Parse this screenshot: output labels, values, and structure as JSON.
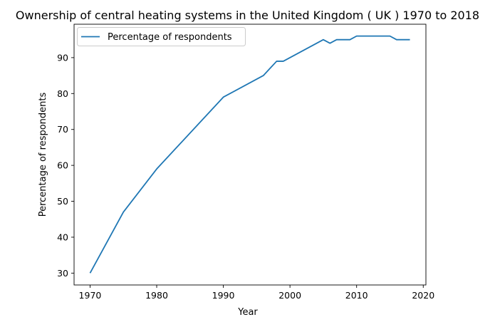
{
  "chart_data": {
    "type": "line",
    "title": "Ownership of central heating systems in the United Kingdom ( UK ) 1970 to 2018",
    "xlabel": "Year",
    "ylabel": "Percentage of respondents",
    "xlim": [
      1967.6,
      2020.4
    ],
    "ylim": [
      26.7,
      99.3
    ],
    "xticks": [
      1970,
      1980,
      1990,
      2000,
      2010,
      2020
    ],
    "yticks": [
      30,
      40,
      50,
      60,
      70,
      80,
      90
    ],
    "grid": false,
    "legend_position": "upper-left",
    "series": [
      {
        "name": "Percentage of respondents",
        "color": "#1f77b4",
        "x": [
          1970,
          1975,
          1980,
          1990,
          1996,
          1998,
          1999,
          2005,
          2006,
          2007,
          2008,
          2009,
          2010,
          2011,
          2012,
          2013,
          2014,
          2015,
          2016,
          2017,
          2018
        ],
        "y": [
          30,
          47,
          59,
          79,
          85,
          89,
          89,
          95,
          94,
          95,
          95,
          95,
          96,
          96,
          96,
          96,
          96,
          96,
          95,
          95,
          95
        ]
      }
    ]
  }
}
